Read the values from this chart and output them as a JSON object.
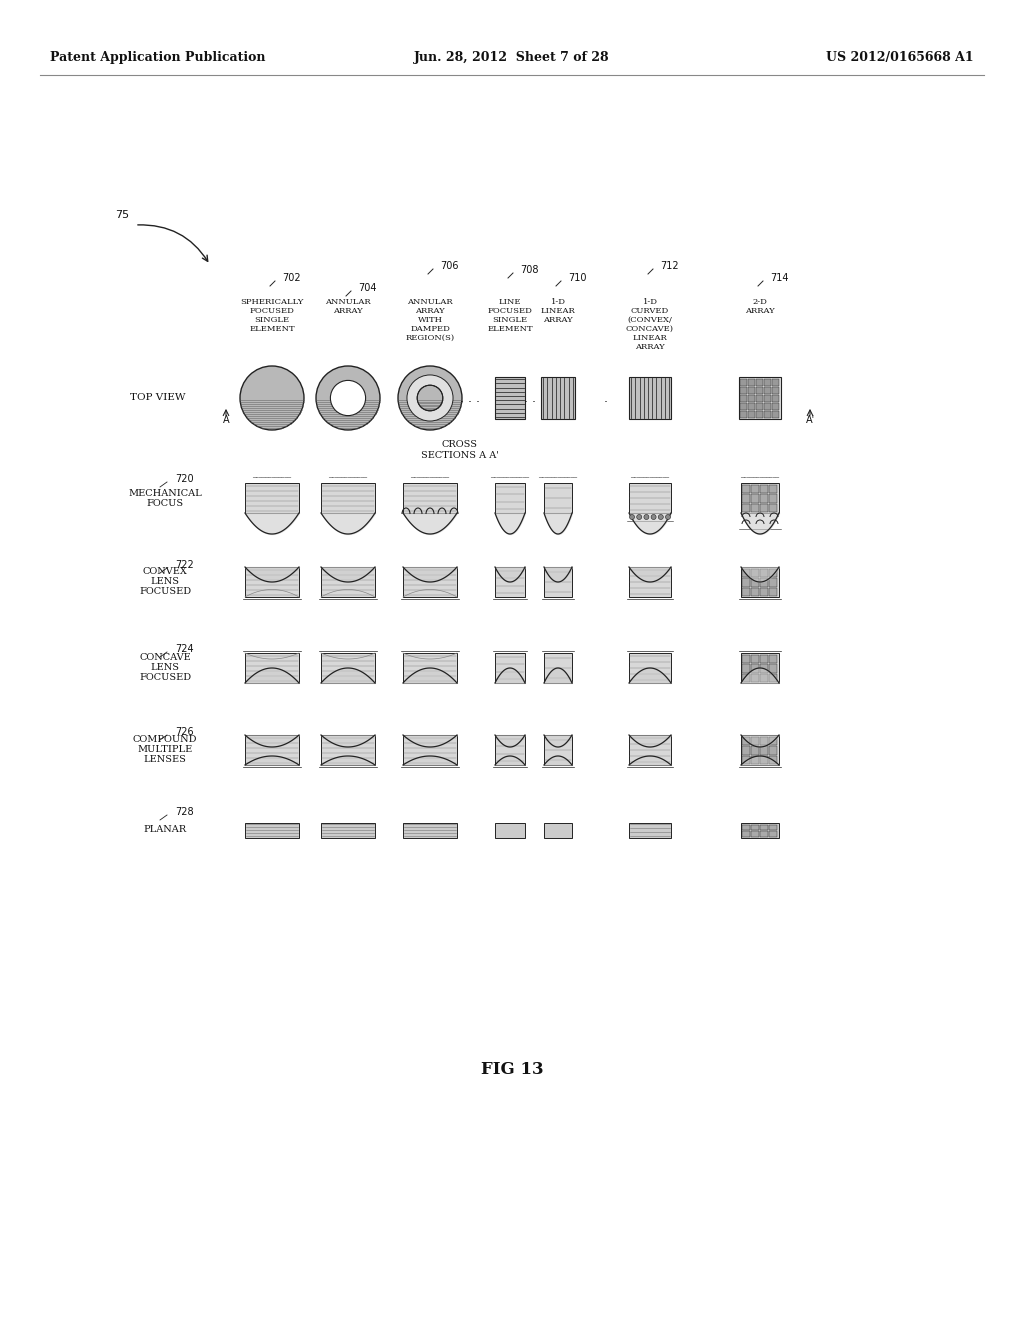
{
  "background_color": "#ffffff",
  "header_left": "Patent Application Publication",
  "header_center": "Jun. 28, 2012  Sheet 7 of 28",
  "header_right": "US 2012/0165668 A1",
  "figure_label": "FIG 13",
  "main_label": "75",
  "col_refs": [
    "702",
    "704",
    "706",
    "708",
    "710",
    "712",
    "714"
  ],
  "col_texts": [
    "SPHERICALLY\nFOCUSED\nSINGLE\nELEMENT",
    "ANNULAR\nARRAY",
    "ANNULAR\nARRAY\nWITH\nDAMPED\nREGION(S)",
    "LINE\nFOCUSED\nSINGLE\nELEMENT",
    "1-D\nLINEAR\nARRAY",
    "1-D\nCURVED\n(CONVEX/\nCONCAVE)\nLINEAR\nARRAY",
    "2-D\nARRAY"
  ],
  "row_refs": [
    "720",
    "722",
    "724",
    "726",
    "728"
  ],
  "row_texts": [
    "MECHANICAL\nFOCUS",
    "CONVEX\nLENS\nFOCUSED",
    "CONCAVE\nLENS\nFOCUSED",
    "COMPOUND\nMULTIPLE\nLENSES",
    "PLANAR"
  ],
  "top_view_label": "TOP VIEW",
  "cross_section_label": "CROSS\nSECTIONS A A'",
  "font_color": "#111111",
  "line_color": "#222222"
}
